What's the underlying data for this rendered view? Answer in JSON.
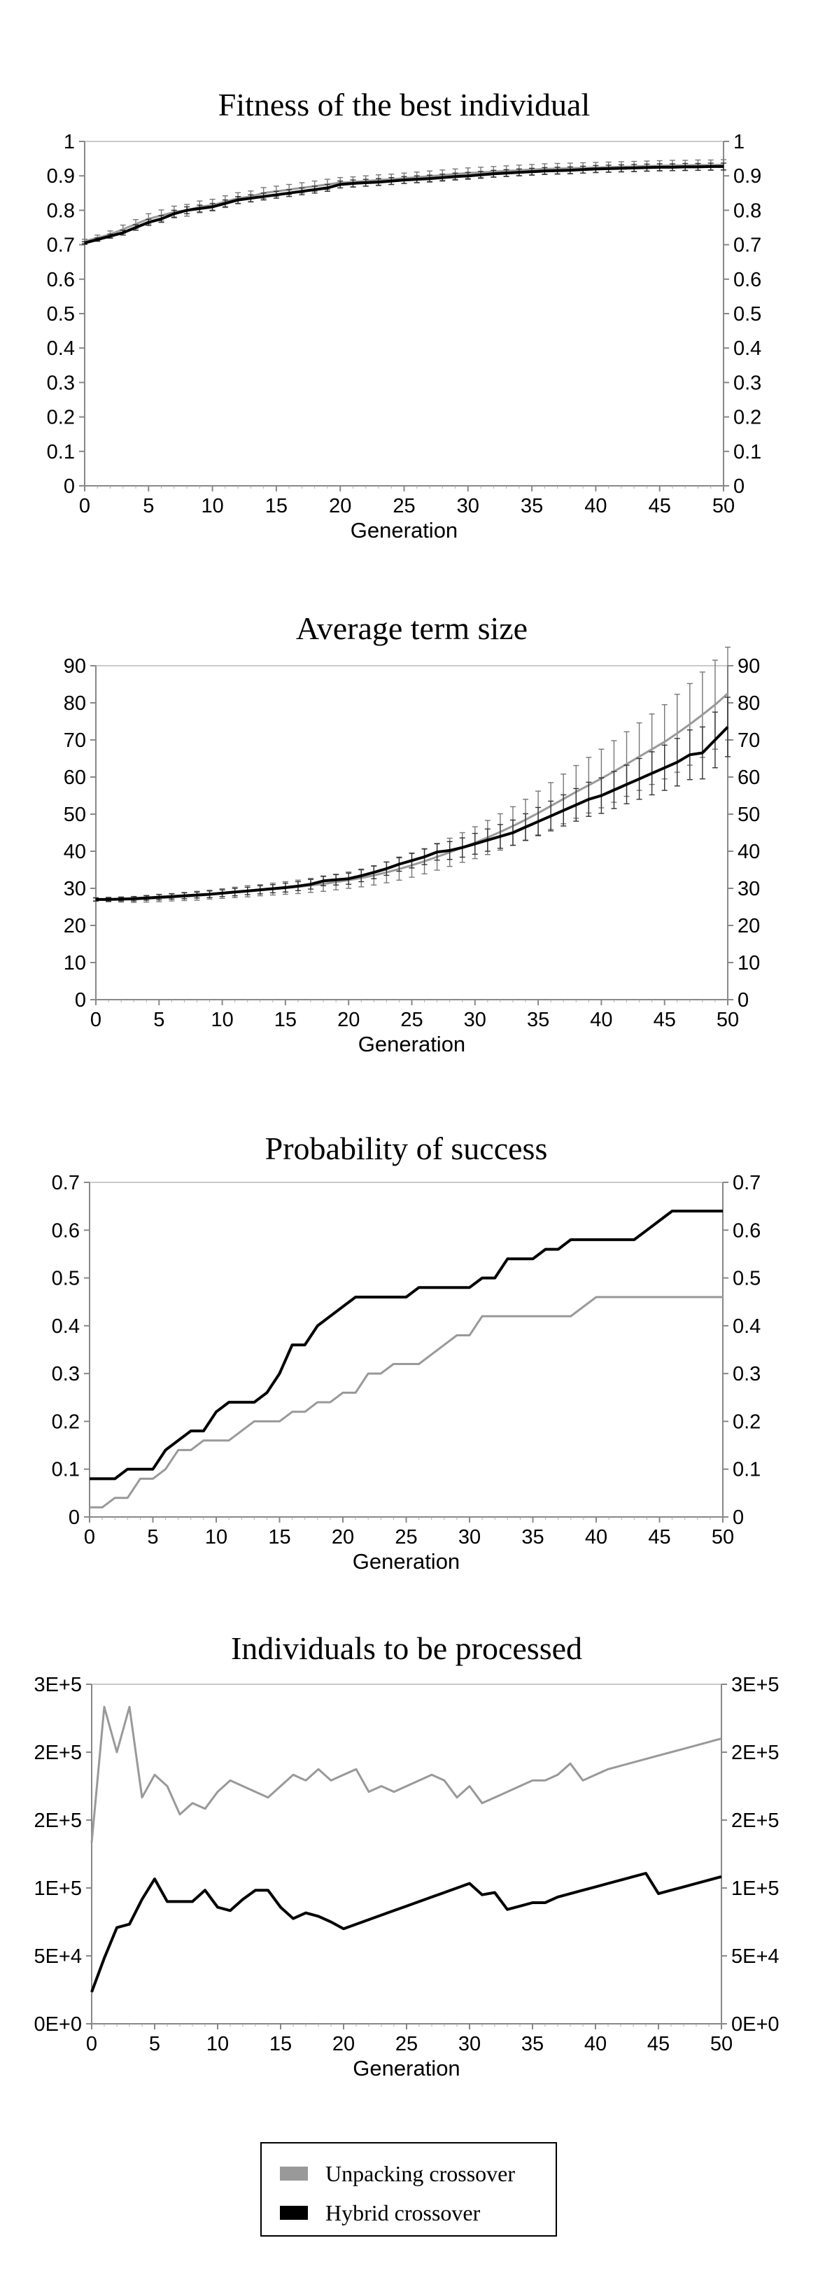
{
  "chart_data": [
    {
      "type": "line",
      "title": "Fitness of the best individual",
      "xlabel": "Generation",
      "ylabel": "",
      "xlim": [
        0,
        50
      ],
      "ylim": [
        0,
        1
      ],
      "xticks": [
        "0",
        "5",
        "10",
        "15",
        "20",
        "25",
        "30",
        "35",
        "40",
        "45",
        "50"
      ],
      "yticks": [
        "0",
        "0.1",
        "0.2",
        "0.3",
        "0.4",
        "0.5",
        "0.6",
        "0.7",
        "0.8",
        "0.9",
        "1"
      ],
      "right_axis": true,
      "grid": false,
      "error_bars": true,
      "x": [
        0,
        1,
        2,
        3,
        4,
        5,
        6,
        7,
        8,
        9,
        10,
        11,
        12,
        13,
        14,
        15,
        16,
        17,
        18,
        19,
        20,
        21,
        22,
        23,
        24,
        25,
        26,
        27,
        28,
        29,
        30,
        31,
        32,
        33,
        34,
        35,
        36,
        37,
        38,
        39,
        40,
        41,
        42,
        43,
        44,
        45,
        46,
        47,
        48,
        49,
        50
      ],
      "series": [
        {
          "name": "Unpacking crossover",
          "color": "#999999",
          "values": [
            0.71,
            0.72,
            0.73,
            0.745,
            0.76,
            0.775,
            0.785,
            0.795,
            0.8,
            0.81,
            0.815,
            0.825,
            0.835,
            0.84,
            0.85,
            0.855,
            0.86,
            0.865,
            0.87,
            0.875,
            0.88,
            0.882,
            0.885,
            0.888,
            0.89,
            0.893,
            0.896,
            0.899,
            0.902,
            0.905,
            0.908,
            0.91,
            0.912,
            0.914,
            0.916,
            0.918,
            0.92,
            0.921,
            0.922,
            0.923,
            0.924,
            0.925,
            0.926,
            0.927,
            0.928,
            0.929,
            0.93,
            0.93,
            0.931,
            0.931,
            0.932
          ],
          "errors": [
            0.006,
            0.008,
            0.01,
            0.012,
            0.013,
            0.015,
            0.016,
            0.017,
            0.017,
            0.017,
            0.017,
            0.017,
            0.016,
            0.016,
            0.016,
            0.015,
            0.015,
            0.015,
            0.015,
            0.015,
            0.015,
            0.015,
            0.015,
            0.015,
            0.015,
            0.015,
            0.015,
            0.015,
            0.015,
            0.015,
            0.015,
            0.015,
            0.015,
            0.015,
            0.015,
            0.015,
            0.015,
            0.015,
            0.015,
            0.015,
            0.015,
            0.015,
            0.015,
            0.015,
            0.015,
            0.015,
            0.015,
            0.015,
            0.015,
            0.015,
            0.015
          ]
        },
        {
          "name": "Hybrid crossover",
          "color": "#000000",
          "values": [
            0.705,
            0.715,
            0.725,
            0.735,
            0.75,
            0.765,
            0.775,
            0.79,
            0.8,
            0.805,
            0.81,
            0.82,
            0.83,
            0.835,
            0.84,
            0.845,
            0.85,
            0.855,
            0.86,
            0.865,
            0.875,
            0.878,
            0.88,
            0.882,
            0.885,
            0.888,
            0.89,
            0.892,
            0.895,
            0.898,
            0.9,
            0.903,
            0.906,
            0.908,
            0.91,
            0.912,
            0.914,
            0.915,
            0.916,
            0.918,
            0.92,
            0.921,
            0.922,
            0.923,
            0.924,
            0.925,
            0.925,
            0.926,
            0.926,
            0.927,
            0.927
          ],
          "errors": [
            0.004,
            0.005,
            0.006,
            0.007,
            0.008,
            0.009,
            0.01,
            0.01,
            0.01,
            0.01,
            0.01,
            0.01,
            0.01,
            0.01,
            0.01,
            0.01,
            0.01,
            0.01,
            0.01,
            0.01,
            0.01,
            0.01,
            0.01,
            0.01,
            0.01,
            0.01,
            0.01,
            0.01,
            0.01,
            0.01,
            0.01,
            0.01,
            0.01,
            0.01,
            0.01,
            0.01,
            0.01,
            0.01,
            0.01,
            0.01,
            0.01,
            0.01,
            0.01,
            0.01,
            0.01,
            0.01,
            0.01,
            0.01,
            0.01,
            0.01,
            0.01
          ]
        }
      ]
    },
    {
      "type": "line",
      "title": "Average term size",
      "xlabel": "Generation",
      "ylabel": "",
      "xlim": [
        0,
        50
      ],
      "ylim": [
        0,
        90
      ],
      "xticks": [
        "0",
        "5",
        "10",
        "15",
        "20",
        "25",
        "30",
        "35",
        "40",
        "45",
        "50"
      ],
      "yticks": [
        "0",
        "10",
        "20",
        "30",
        "40",
        "50",
        "60",
        "70",
        "80",
        "90"
      ],
      "right_axis": true,
      "grid": false,
      "error_bars": true,
      "x": [
        0,
        1,
        2,
        3,
        4,
        5,
        6,
        7,
        8,
        9,
        10,
        11,
        12,
        13,
        14,
        15,
        16,
        17,
        18,
        19,
        20,
        21,
        22,
        23,
        24,
        25,
        26,
        27,
        28,
        29,
        30,
        31,
        32,
        33,
        34,
        35,
        36,
        37,
        38,
        39,
        40,
        41,
        42,
        43,
        44,
        45,
        46,
        47,
        48,
        49,
        50
      ],
      "series": [
        {
          "name": "Unpacking crossover",
          "color": "#999999",
          "values": [
            27,
            27,
            27,
            27,
            27.2,
            27.4,
            27.6,
            27.8,
            28,
            28.3,
            28.6,
            28.9,
            29.2,
            29.5,
            29.8,
            30.1,
            30.4,
            30.8,
            31.2,
            31.7,
            32.2,
            32.8,
            33.5,
            34.3,
            35.2,
            36.2,
            37.3,
            38.5,
            39.7,
            41,
            42.3,
            43.7,
            45.2,
            46.8,
            48.5,
            50.3,
            52.2,
            54.1,
            56,
            57.8,
            59.6,
            61.5,
            63.5,
            65.5,
            67.5,
            69.5,
            71.8,
            74.2,
            76.8,
            79.5,
            82.5
          ],
          "errors": [
            0.5,
            0.6,
            0.7,
            0.8,
            0.9,
            1,
            1,
            1.1,
            1.2,
            1.2,
            1.3,
            1.4,
            1.5,
            1.5,
            1.6,
            1.7,
            1.8,
            1.9,
            2,
            2.1,
            2.2,
            2.4,
            2.6,
            2.8,
            3,
            3.2,
            3.4,
            3.6,
            3.8,
            4,
            4.3,
            4.6,
            4.9,
            5.2,
            5.5,
            5.9,
            6.3,
            6.7,
            7.1,
            7.5,
            7.9,
            8.3,
            8.7,
            9.1,
            9.5,
            10,
            10.5,
            11,
            11.5,
            12,
            12.5
          ]
        },
        {
          "name": "Hybrid crossover",
          "color": "#000000",
          "values": [
            27,
            27,
            27.1,
            27.2,
            27.4,
            27.6,
            27.8,
            28,
            28.2,
            28.4,
            28.7,
            29,
            29.3,
            29.6,
            29.9,
            30.2,
            30.6,
            31.1,
            32,
            32.3,
            32.6,
            33.4,
            34.3,
            35.3,
            36.5,
            37.5,
            38.5,
            39.8,
            40.2,
            41,
            42,
            43,
            44,
            45,
            46.5,
            48,
            49.5,
            51,
            52.5,
            54,
            55,
            56.5,
            58,
            59.5,
            61,
            62.5,
            64,
            66,
            66.5,
            70,
            73.5
          ],
          "errors": [
            0.4,
            0.5,
            0.5,
            0.6,
            0.6,
            0.7,
            0.7,
            0.8,
            0.8,
            0.9,
            0.9,
            1,
            1,
            1.1,
            1.1,
            1.2,
            1.2,
            1.3,
            1.3,
            1.4,
            1.5,
            1.6,
            1.7,
            1.8,
            1.9,
            2,
            2.1,
            2.2,
            2.4,
            2.6,
            2.8,
            3,
            3.2,
            3.4,
            3.6,
            3.8,
            4,
            4.2,
            4.4,
            4.6,
            4.8,
            5,
            5.2,
            5.5,
            5.8,
            6.1,
            6.4,
            6.7,
            7,
            7.5,
            8
          ]
        }
      ]
    },
    {
      "type": "line",
      "title": "Probability of success",
      "xlabel": "Generation",
      "ylabel": "",
      "xlim": [
        0,
        50
      ],
      "ylim": [
        0,
        0.7
      ],
      "xticks": [
        "0",
        "5",
        "10",
        "15",
        "20",
        "25",
        "30",
        "35",
        "40",
        "45",
        "50"
      ],
      "yticks": [
        "0",
        "0.1",
        "0.2",
        "0.3",
        "0.4",
        "0.5",
        "0.6",
        "0.7"
      ],
      "right_axis": true,
      "grid": false,
      "error_bars": false,
      "x": [
        0,
        1,
        2,
        3,
        4,
        5,
        6,
        7,
        8,
        9,
        10,
        11,
        12,
        13,
        14,
        15,
        16,
        17,
        18,
        19,
        20,
        21,
        22,
        23,
        24,
        25,
        26,
        27,
        28,
        29,
        30,
        31,
        32,
        33,
        34,
        35,
        36,
        37,
        38,
        39,
        40,
        41,
        42,
        43,
        44,
        45,
        46,
        47,
        48,
        49,
        50
      ],
      "series": [
        {
          "name": "Unpacking crossover",
          "color": "#999999",
          "values": [
            0.02,
            0.02,
            0.04,
            0.04,
            0.08,
            0.08,
            0.1,
            0.14,
            0.14,
            0.16,
            0.16,
            0.16,
            0.18,
            0.2,
            0.2,
            0.2,
            0.22,
            0.22,
            0.24,
            0.24,
            0.26,
            0.26,
            0.3,
            0.3,
            0.32,
            0.32,
            0.32,
            0.34,
            0.36,
            0.38,
            0.38,
            0.42,
            0.42,
            0.42,
            0.42,
            0.42,
            0.42,
            0.42,
            0.42,
            0.44,
            0.46,
            0.46,
            0.46,
            0.46,
            0.46,
            0.46,
            0.46,
            0.46,
            0.46,
            0.46,
            0.46
          ]
        },
        {
          "name": "Hybrid crossover",
          "color": "#000000",
          "values": [
            0.08,
            0.08,
            0.08,
            0.1,
            0.1,
            0.1,
            0.14,
            0.16,
            0.18,
            0.18,
            0.22,
            0.24,
            0.24,
            0.24,
            0.26,
            0.3,
            0.36,
            0.36,
            0.4,
            0.42,
            0.44,
            0.46,
            0.46,
            0.46,
            0.46,
            0.46,
            0.48,
            0.48,
            0.48,
            0.48,
            0.48,
            0.5,
            0.5,
            0.54,
            0.54,
            0.54,
            0.56,
            0.56,
            0.58,
            0.58,
            0.58,
            0.58,
            0.58,
            0.58,
            0.6,
            0.62,
            0.64,
            0.64,
            0.64,
            0.64,
            0.64
          ]
        }
      ]
    },
    {
      "type": "line",
      "title": "Individuals to be processed",
      "xlabel": "Generation",
      "ylabel": "",
      "xlim": [
        0,
        50
      ],
      "ylim": [
        0,
        300000
      ],
      "xticks": [
        "0",
        "5",
        "10",
        "15",
        "20",
        "25",
        "30",
        "35",
        "40",
        "45",
        "50"
      ],
      "yticks": [
        "0E+0",
        "5E+4",
        "1E+5",
        "2E+5",
        "2E+5",
        "3E+5"
      ],
      "right_axis": true,
      "grid": false,
      "error_bars": false,
      "x": [
        0,
        1,
        2,
        3,
        4,
        5,
        6,
        7,
        8,
        9,
        10,
        11,
        12,
        13,
        14,
        15,
        16,
        17,
        18,
        19,
        20,
        21,
        22,
        23,
        24,
        25,
        26,
        27,
        28,
        29,
        30,
        31,
        32,
        33,
        34,
        35,
        36,
        37,
        38,
        39,
        40,
        41,
        42,
        43,
        44,
        45,
        46,
        47,
        48,
        49,
        50
      ],
      "series": [
        {
          "name": "Unpacking crossover",
          "color": "#999999",
          "values": [
            160000,
            280000,
            240000,
            280000,
            200000,
            220000,
            210000,
            185000,
            195000,
            190000,
            205000,
            215000,
            210000,
            205000,
            200000,
            210000,
            220000,
            215000,
            225000,
            215000,
            220000,
            225000,
            205000,
            210000,
            205000,
            210000,
            215000,
            220000,
            215000,
            200000,
            210000,
            195000,
            200000,
            205000,
            210000,
            215000,
            215000,
            220000,
            230000,
            215000,
            220000,
            225000,
            228000,
            231000,
            234000,
            237000,
            240000,
            243000,
            246000,
            249000,
            252000
          ]
        },
        {
          "name": "Hybrid crossover",
          "color": "#000000",
          "values": [
            28000,
            58000,
            85000,
            88000,
            110000,
            128000,
            108000,
            108000,
            108000,
            118000,
            103000,
            100000,
            110000,
            118000,
            118000,
            103000,
            93000,
            98000,
            95000,
            90000,
            84000,
            88000,
            92000,
            96000,
            100000,
            104000,
            108000,
            112000,
            116000,
            120000,
            124000,
            114000,
            116000,
            101000,
            104000,
            107000,
            107000,
            112000,
            115000,
            118000,
            121000,
            124000,
            127000,
            130000,
            133000,
            115000,
            118000,
            121000,
            124000,
            127000,
            130000
          ]
        }
      ]
    }
  ],
  "legend": {
    "items": [
      {
        "label": "Unpacking crossover",
        "color": "#999999"
      },
      {
        "label": "Hybrid crossover",
        "color": "#000000"
      }
    ]
  }
}
